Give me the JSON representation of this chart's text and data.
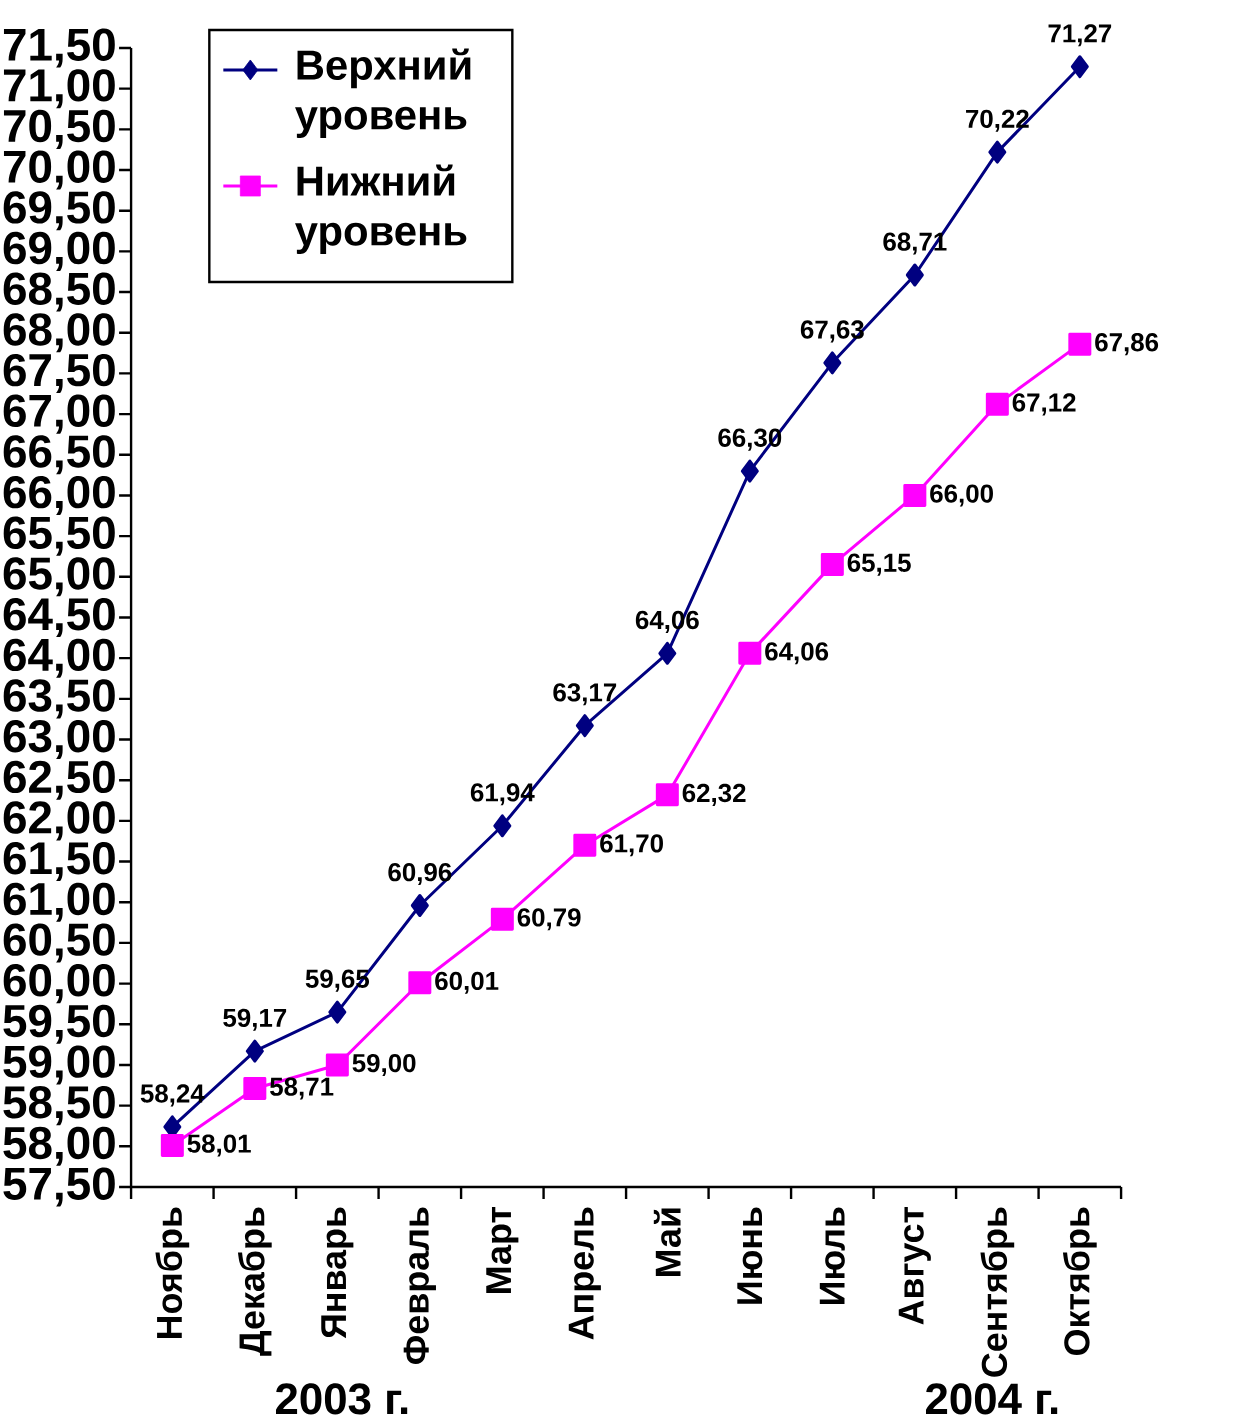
{
  "chart_data": {
    "type": "line",
    "categories": [
      "Ноябрь",
      "Декабрь",
      "Январь",
      "Февраль",
      "Март",
      "Апрель",
      "Май",
      "Июнь",
      "Июль",
      "Август",
      "Сентябрь",
      "Октябрь"
    ],
    "series": [
      {
        "name": "Верхний уровень",
        "color": "#000080",
        "marker": "diamond",
        "values": [
          58.24,
          59.17,
          59.65,
          60.96,
          61.94,
          63.17,
          64.06,
          66.3,
          67.63,
          68.71,
          70.22,
          71.27
        ],
        "value_labels": [
          "58,24",
          "59,17",
          "59,65",
          "60,96",
          "61,94",
          "63,17",
          "64,06",
          "66,30",
          "67,63",
          "68,71",
          "70,22",
          "71,27"
        ]
      },
      {
        "name": "Нижний уровень",
        "color": "#ff00ff",
        "marker": "square",
        "values": [
          58.01,
          58.71,
          59.0,
          60.01,
          60.79,
          61.7,
          62.32,
          64.06,
          65.15,
          66.0,
          67.12,
          67.86
        ],
        "value_labels": [
          "58,01",
          "58,71",
          "59,00",
          "60,01",
          "60,79",
          "61,70",
          "62,32",
          "64,06",
          "65,15",
          "66,00",
          "67,12",
          "67,86"
        ]
      }
    ],
    "ylim": [
      57.5,
      71.5
    ],
    "yticks": [
      {
        "value": 57.5,
        "label": "57,50"
      },
      {
        "value": 58.0,
        "label": "58,00"
      },
      {
        "value": 58.5,
        "label": "58,50"
      },
      {
        "value": 59.0,
        "label": "59,00"
      },
      {
        "value": 59.5,
        "label": "59,50"
      },
      {
        "value": 60.0,
        "label": "60,00"
      },
      {
        "value": 60.5,
        "label": "60,50"
      },
      {
        "value": 61.0,
        "label": "61,00"
      },
      {
        "value": 61.5,
        "label": "61,50"
      },
      {
        "value": 62.0,
        "label": "62,00"
      },
      {
        "value": 62.5,
        "label": "62,50"
      },
      {
        "value": 63.0,
        "label": "63,00"
      },
      {
        "value": 63.5,
        "label": "63,50"
      },
      {
        "value": 64.0,
        "label": "64,00"
      },
      {
        "value": 64.5,
        "label": "64,50"
      },
      {
        "value": 65.0,
        "label": "65,00"
      },
      {
        "value": 65.5,
        "label": "65,50"
      },
      {
        "value": 66.0,
        "label": "66,00"
      },
      {
        "value": 66.5,
        "label": "66,50"
      },
      {
        "value": 67.0,
        "label": "67,00"
      },
      {
        "value": 67.5,
        "label": "67,50"
      },
      {
        "value": 68.0,
        "label": "68,00"
      },
      {
        "value": 68.5,
        "label": "68,50"
      },
      {
        "value": 69.0,
        "label": "69,00"
      },
      {
        "value": 69.5,
        "label": "69,50"
      },
      {
        "value": 70.0,
        "label": "70,00"
      },
      {
        "value": 70.5,
        "label": "70,50"
      },
      {
        "value": 71.0,
        "label": "71,00"
      },
      {
        "value": 71.5,
        "label": "71,50"
      }
    ],
    "annotations": [
      "2003 г.",
      "2004 г."
    ],
    "legend": "top left",
    "grid": false
  }
}
